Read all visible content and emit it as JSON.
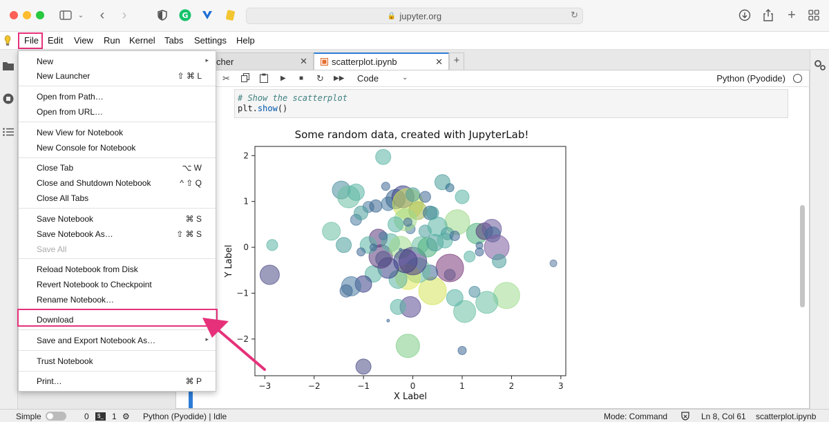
{
  "browser": {
    "url": "jupyter.org"
  },
  "menubar": {
    "items": [
      "File",
      "Edit",
      "View",
      "Run",
      "Kernel",
      "Tabs",
      "Settings",
      "Help"
    ]
  },
  "tabs": {
    "inactive_label": "cher",
    "active_label": "scatterplot.ipynb"
  },
  "toolbar": {
    "cell_type": "Code",
    "kernel": "Python (Pyodide)"
  },
  "code": {
    "line1": "# Show the scatterplot",
    "line2_prefix": "plt.",
    "line2_fn": "show",
    "line2_suffix": "()"
  },
  "file_menu": {
    "new": "New",
    "new_launcher": "New Launcher",
    "new_launcher_sc": "⇧ ⌘ L",
    "open_path": "Open from Path…",
    "open_url": "Open from URL…",
    "new_view": "New View for Notebook",
    "new_console": "New Console for Notebook",
    "close_tab": "Close Tab",
    "close_tab_sc": "⌥ W",
    "close_shutdown": "Close and Shutdown Notebook",
    "close_shutdown_sc": "^ ⇧ Q",
    "close_all": "Close All Tabs",
    "save_nb": "Save Notebook",
    "save_nb_sc": "⌘ S",
    "save_as": "Save Notebook As…",
    "save_as_sc": "⇧ ⌘ S",
    "save_all": "Save All",
    "reload": "Reload Notebook from Disk",
    "revert": "Revert Notebook to Checkpoint",
    "rename": "Rename Notebook…",
    "download": "Download",
    "save_export": "Save and Export Notebook As…",
    "trust": "Trust Notebook",
    "print": "Print…",
    "print_sc": "⌘ P"
  },
  "statusbar": {
    "mode_label": "Simple",
    "count_a": "0",
    "count_b": "1",
    "kernel_status": "Python (Pyodide) | Idle",
    "mode": "Mode: Command",
    "cursor": "Ln 8, Col 61",
    "filename": "scatterplot.ipynb"
  },
  "chart_data": {
    "type": "scatter",
    "title": "Some random data, created with JupyterLab!",
    "xlabel": "X Label",
    "ylabel": "Y Label",
    "xlim": [
      -3.2,
      3.1
    ],
    "ylim": [
      -2.8,
      2.2
    ],
    "xticks": [
      -3,
      -2,
      -1,
      0,
      1,
      2,
      3
    ],
    "yticks": [
      -2,
      -1,
      0,
      1,
      2
    ],
    "tick_labels_x": [
      "−3",
      "−2",
      "−1",
      "0",
      "1",
      "2",
      "3"
    ],
    "tick_labels_y": [
      "−2",
      "−1",
      "0",
      "1",
      "2"
    ],
    "points": [
      [
        -0.6,
        1.97,
        11,
        "#5ab4a4"
      ],
      [
        -0.55,
        1.33,
        6,
        "#3f6a96"
      ],
      [
        -1.45,
        1.25,
        13,
        "#4a8e9e"
      ],
      [
        -1.3,
        1.1,
        16,
        "#6cc0a2"
      ],
      [
        -1.15,
        1.2,
        12,
        "#5ab4a4"
      ],
      [
        -0.9,
        0.88,
        8,
        "#4a7aa0"
      ],
      [
        -0.75,
        0.9,
        9,
        "#3a6690"
      ],
      [
        -0.5,
        0.95,
        10,
        "#4a7aa0"
      ],
      [
        -0.35,
        1.05,
        14,
        "#3a6690"
      ],
      [
        -0.2,
        1.1,
        16,
        "#3b3f86"
      ],
      [
        -0.1,
        0.95,
        22,
        "#d4e35a"
      ],
      [
        0.1,
        0.8,
        13,
        "#a0b850"
      ],
      [
        0.35,
        0.75,
        10,
        "#2f6e8e"
      ],
      [
        0.6,
        1.42,
        11,
        "#4a9e9a"
      ],
      [
        0.75,
        1.3,
        6,
        "#2f6e8e"
      ],
      [
        1.0,
        1.1,
        10,
        "#5ab4a4"
      ],
      [
        0.9,
        0.55,
        18,
        "#9fd88a"
      ],
      [
        1.3,
        0.3,
        15,
        "#4ab07c"
      ],
      [
        1.45,
        0.35,
        12,
        "#5a3a7a"
      ],
      [
        1.6,
        0.4,
        14,
        "#6a5a9a"
      ],
      [
        1.62,
        0.28,
        11,
        "#3f6a96"
      ],
      [
        1.7,
        0.0,
        18,
        "#7e5b9e"
      ],
      [
        1.35,
        -0.1,
        6,
        "#3f6a96"
      ],
      [
        1.35,
        0.04,
        5,
        "#3f6a96"
      ],
      [
        1.15,
        -0.2,
        8,
        "#5ab4a4"
      ],
      [
        1.75,
        -0.3,
        10,
        "#4a9e9a"
      ],
      [
        1.9,
        -1.05,
        19,
        "#a0dc90"
      ],
      [
        1.5,
        -1.2,
        16,
        "#6cc0a2"
      ],
      [
        1.25,
        -0.97,
        8,
        "#4a8e9e"
      ],
      [
        1.05,
        -1.4,
        16,
        "#6cc0a2"
      ],
      [
        0.85,
        -1.1,
        12,
        "#5ab4a4"
      ],
      [
        0.75,
        -0.6,
        8,
        "#4a7aa0"
      ],
      [
        0.75,
        -0.45,
        20,
        "#7a3a7a"
      ],
      [
        0.4,
        -0.95,
        20,
        "#d4e35a"
      ],
      [
        0.35,
        -0.55,
        11,
        "#3f6a96"
      ],
      [
        0.1,
        -0.5,
        18,
        "#6cc0a2"
      ],
      [
        -0.1,
        -0.65,
        18,
        "#e0e85a"
      ],
      [
        -0.3,
        -0.7,
        13,
        "#5ab4a4"
      ],
      [
        -0.5,
        -0.45,
        15,
        "#3a3f86"
      ],
      [
        -0.6,
        -0.25,
        11,
        "#4a7aa0"
      ],
      [
        -0.8,
        -0.58,
        12,
        "#5ab4a4"
      ],
      [
        -1.0,
        -0.8,
        12,
        "#3b3f86"
      ],
      [
        -1.25,
        -0.85,
        14,
        "#4a7aa0"
      ],
      [
        -1.35,
        -0.95,
        9,
        "#3f6a96"
      ],
      [
        -0.65,
        -0.2,
        17,
        "#5a3a7a"
      ],
      [
        -0.7,
        0.2,
        13,
        "#5a3a7a"
      ],
      [
        -0.45,
        0.1,
        13,
        "#5ab4a4"
      ],
      [
        -0.25,
        0.0,
        16,
        "#9fd88a"
      ],
      [
        -0.15,
        -0.3,
        17,
        "#3b3f86"
      ],
      [
        0.0,
        -0.3,
        20,
        "#4a3a86"
      ],
      [
        0.15,
        0.05,
        12,
        "#6cc0a2"
      ],
      [
        0.3,
        0.0,
        14,
        "#4ab07c"
      ],
      [
        0.45,
        0.1,
        12,
        "#4a9e9a"
      ],
      [
        0.65,
        0.15,
        11,
        "#5ab4a4"
      ],
      [
        0.25,
        0.35,
        9,
        "#4a9e9a"
      ],
      [
        0.5,
        0.45,
        14,
        "#5ab4a4"
      ],
      [
        0.4,
        0.75,
        9,
        "#4a9e9a"
      ],
      [
        0.7,
        0.3,
        9,
        "#4a9e9a"
      ],
      [
        0.85,
        0.25,
        7,
        "#3f6a96"
      ],
      [
        -0.05,
        0.4,
        7,
        "#4a7aa0"
      ],
      [
        -0.15,
        0.6,
        16,
        "#9fd88a"
      ],
      [
        -0.35,
        0.5,
        11,
        "#5ab4a4"
      ],
      [
        -0.6,
        0.25,
        6,
        "#4a7aa0"
      ],
      [
        -0.9,
        0.05,
        12,
        "#5ab4a4"
      ],
      [
        -1.05,
        -0.1,
        6,
        "#3f6a96"
      ],
      [
        -1.4,
        0.05,
        11,
        "#4a9e9a"
      ],
      [
        -1.65,
        0.35,
        13,
        "#6cc0a2"
      ],
      [
        -1.15,
        0.6,
        8,
        "#4a7aa0"
      ],
      [
        -1.05,
        0.75,
        10,
        "#4a9e9a"
      ],
      [
        -0.1,
        0.55,
        6,
        "#3f6a96"
      ],
      [
        -0.8,
        -0.0,
        5,
        "#3f6a96"
      ],
      [
        -2.85,
        0.05,
        8,
        "#5ab4a4"
      ],
      [
        -2.9,
        -0.6,
        14,
        "#4a4a86"
      ],
      [
        2.85,
        -0.35,
        5,
        "#5a7aa0"
      ],
      [
        1.0,
        -2.25,
        6,
        "#3f6a96"
      ],
      [
        -0.1,
        -2.15,
        17,
        "#7ecc86"
      ],
      [
        -1.0,
        -2.6,
        11,
        "#4a4a86"
      ],
      [
        -0.5,
        -1.6,
        2,
        "#3f6a96"
      ],
      [
        -0.25,
        -0.05,
        2,
        "#3f6a96"
      ],
      [
        -0.05,
        -1.3,
        15,
        "#5a4a90"
      ],
      [
        -0.3,
        -1.3,
        11,
        "#5ab4a4"
      ],
      [
        0.0,
        1.15,
        10,
        "#4a9e9a"
      ],
      [
        0.25,
        1.1,
        8,
        "#3f6a96"
      ]
    ]
  }
}
